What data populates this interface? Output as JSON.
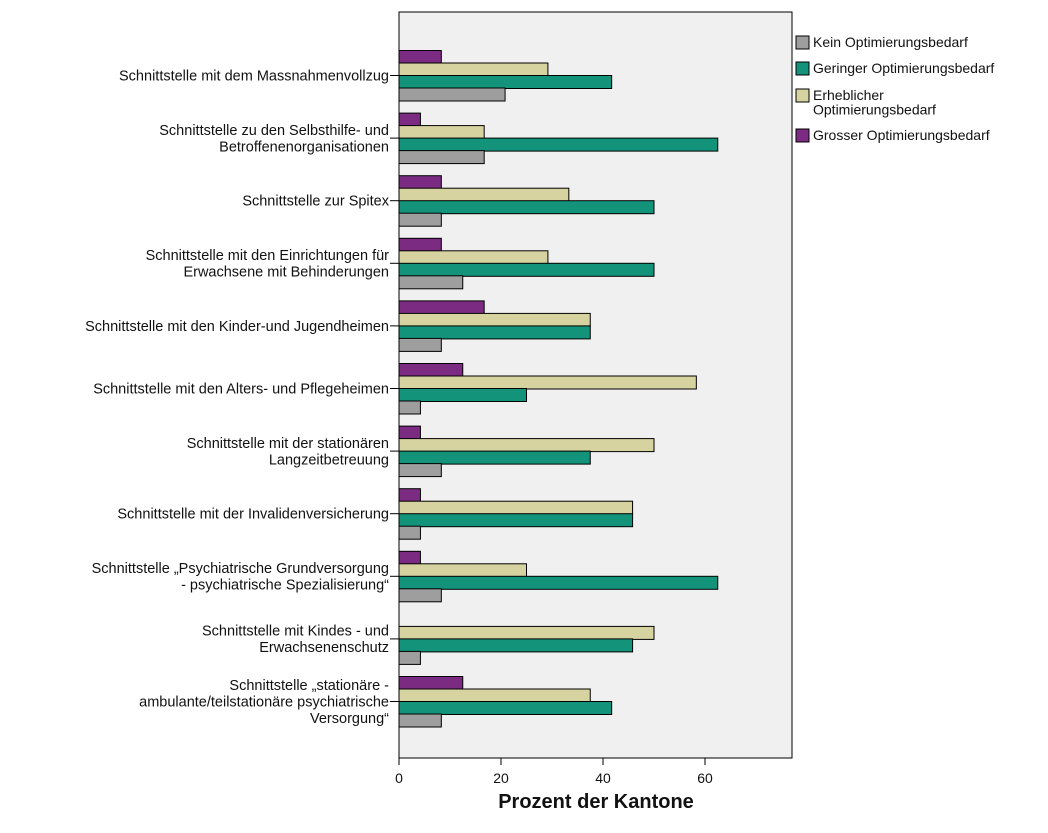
{
  "chart_data": {
    "type": "bar",
    "orientation": "horizontal",
    "xlabel": "Prozent der Kantone",
    "xlim": [
      0,
      75
    ],
    "xticks": [
      0,
      20,
      40,
      60
    ],
    "grid": false,
    "legend_position": "right",
    "categories": [
      [
        "Schnittstelle mit dem Massnahmenvollzug"
      ],
      [
        "Schnittstelle zu den Selbsthilfe- und",
        "Betroffenenorganisationen"
      ],
      [
        "Schnittstelle zur Spitex"
      ],
      [
        "Schnittstelle mit den Einrichtungen für",
        "Erwachsene mit Behinderungen"
      ],
      [
        "Schnittstelle mit den Kinder-und Jugendheimen"
      ],
      [
        "Schnittstelle mit den Alters- und Pflegeheimen"
      ],
      [
        "Schnittstelle mit der stationären",
        "Langzeitbetreuung"
      ],
      [
        "Schnittstelle mit der Invalidenversicherung"
      ],
      [
        "Schnittstelle „Psychiatrische Grundversorgung",
        "- psychiatrische Spezialisierung“"
      ],
      [
        "Schnittstelle mit Kindes - und",
        "Erwachsenenschutz"
      ],
      [
        "Schnittstelle „stationäre -",
        "ambulante/teilstationäre psychiatrische",
        "Versorgung“"
      ]
    ],
    "series": [
      {
        "name": "Grosser Optimierungsbedarf",
        "color": "#7b2c82",
        "values": [
          8.3,
          4.2,
          8.3,
          8.3,
          16.7,
          12.5,
          4.2,
          4.2,
          4.2,
          0,
          12.5
        ]
      },
      {
        "name": "Erheblicher Optimierungsbedarf",
        "legend_lines": [
          "Erheblicher",
          "Optimierungsbedarf"
        ],
        "color": "#d6d3a0",
        "values": [
          29.2,
          16.7,
          33.3,
          29.2,
          37.5,
          58.3,
          50.0,
          45.8,
          25.0,
          50.0,
          37.5
        ]
      },
      {
        "name": "Geringer Optimierungsbedarf",
        "color": "#13947a",
        "values": [
          41.7,
          62.5,
          50.0,
          50.0,
          37.5,
          25.0,
          37.5,
          45.8,
          62.5,
          45.8,
          41.7
        ]
      },
      {
        "name": "Kein Optimierungsbedarf",
        "color": "#9e9e9e",
        "values": [
          20.8,
          16.7,
          8.3,
          12.5,
          8.3,
          4.2,
          8.3,
          4.2,
          8.3,
          4.2,
          8.3
        ]
      }
    ],
    "legend_order": [
      3,
      2,
      1,
      0
    ]
  }
}
